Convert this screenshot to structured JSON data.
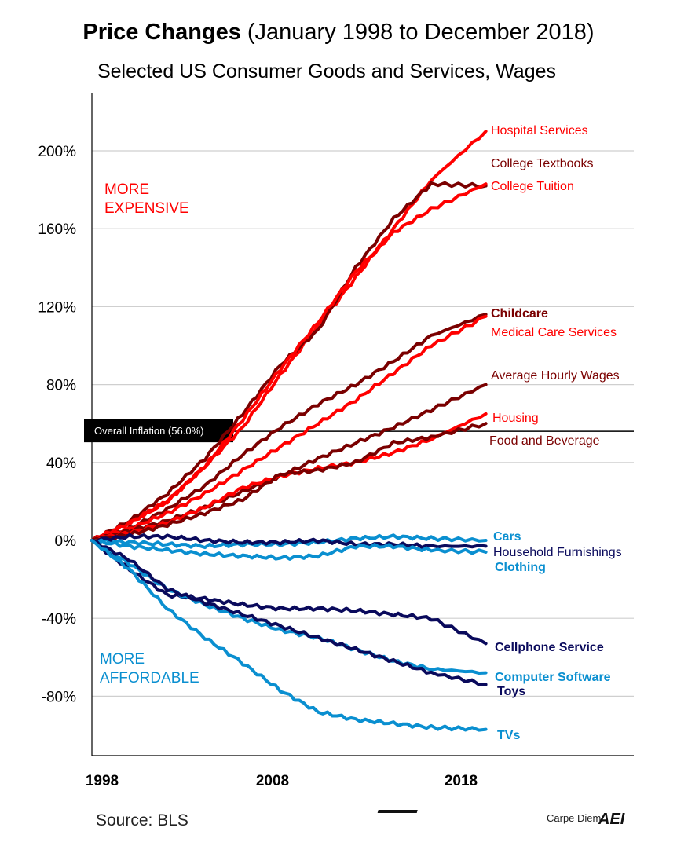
{
  "chart_data": {
    "type": "line",
    "title": "Price Changes",
    "title_suffix": "(January 1998 to December 2018)",
    "subtitle": "Selected US Consumer Goods and Services, Wages",
    "ylim": [
      -100,
      240
    ],
    "y_ticks": [
      {
        "value": 200,
        "label": "200%"
      },
      {
        "value": 160,
        "label": "160%"
      },
      {
        "value": 120,
        "label": "120%"
      },
      {
        "value": 80,
        "label": "80%"
      },
      {
        "value": 40,
        "label": "40%"
      },
      {
        "value": 0,
        "label": "0%"
      },
      {
        "value": -40,
        "label": "-40%"
      },
      {
        "value": -80,
        "label": "-80%"
      }
    ],
    "x_ticks": [
      {
        "value": 1998,
        "label": "1998"
      },
      {
        "value": 2008,
        "label": "2008"
      },
      {
        "value": 2018,
        "label": "2018"
      }
    ],
    "grid": "horizontal",
    "x": [
      1998,
      2000,
      2002,
      2004,
      2006,
      2008,
      2010,
      2012,
      2014,
      2016,
      2018.9
    ],
    "colors": {
      "red": "#ff0000",
      "dark_red": "#7a0000",
      "light_blue": "#0a8fd0",
      "navy": "#0a0a5c"
    },
    "series": [
      {
        "name": "Hospital Services",
        "color": "#ff0000",
        "bold": false,
        "values": [
          0,
          9,
          20,
          38,
          58,
          85,
          110,
          135,
          160,
          185,
          210
        ]
      },
      {
        "name": "College Textbooks",
        "color": "#7a0000",
        "bold": false,
        "values": [
          0,
          10,
          24,
          42,
          65,
          90,
          108,
          140,
          165,
          183,
          182
        ]
      },
      {
        "name": "College Tuition",
        "color": "#ff0000",
        "bold": false,
        "values": [
          0,
          9,
          20,
          38,
          62,
          88,
          112,
          138,
          158,
          170,
          183
        ]
      },
      {
        "name": "Childcare",
        "color": "#7a0000",
        "bold": true,
        "values": [
          0,
          6,
          16,
          28,
          44,
          58,
          70,
          80,
          92,
          105,
          116
        ]
      },
      {
        "name": "Medical Care Services",
        "color": "#ff0000",
        "bold": false,
        "values": [
          0,
          6,
          14,
          24,
          36,
          48,
          60,
          72,
          86,
          100,
          115
        ]
      },
      {
        "name": "Average Hourly Wages",
        "color": "#7a0000",
        "bold": false,
        "values": [
          0,
          5,
          10,
          17,
          25,
          33,
          42,
          50,
          58,
          67,
          80
        ]
      },
      {
        "name": "Housing",
        "color": "#ff0000",
        "bold": false,
        "values": [
          0,
          4,
          9,
          17,
          27,
          33,
          37,
          40,
          45,
          52,
          65
        ]
      },
      {
        "name": "Food and Beverage",
        "color": "#7a0000",
        "bold": false,
        "values": [
          0,
          3,
          8,
          14,
          21,
          34,
          36,
          40,
          50,
          53,
          60
        ]
      },
      {
        "name": "Cars",
        "color": "#0a8fd0",
        "bold": true,
        "values": [
          0,
          -1,
          -2,
          -3,
          -2,
          -2,
          -1,
          1,
          2,
          1,
          0
        ]
      },
      {
        "name": "Household Furnishings",
        "color": "#0a0a5c",
        "bold": false,
        "values": [
          0,
          2,
          2,
          0,
          -1,
          -1,
          0,
          -2,
          -2,
          -3,
          -3
        ]
      },
      {
        "name": "Clothing",
        "color": "#0a8fd0",
        "bold": true,
        "values": [
          0,
          -3,
          -5,
          -7,
          -8,
          -9,
          -8,
          -3,
          -3,
          -5,
          -6
        ]
      },
      {
        "name": "Cellphone Service",
        "color": "#0a0a5c",
        "bold": true,
        "values": [
          0,
          -15,
          -28,
          -30,
          -33,
          -35,
          -35,
          -36,
          -38,
          -40,
          -53
        ]
      },
      {
        "name": "Computer Software",
        "color": "#0a8fd0",
        "bold": true,
        "values": [
          0,
          -12,
          -25,
          -33,
          -40,
          -46,
          -50,
          -56,
          -62,
          -66,
          -68
        ]
      },
      {
        "name": "Toys",
        "color": "#0a0a5c",
        "bold": true,
        "values": [
          0,
          -10,
          -25,
          -32,
          -38,
          -44,
          -50,
          -56,
          -62,
          -68,
          -74
        ]
      },
      {
        "name": "TVs",
        "color": "#0a8fd0",
        "bold": true,
        "values": [
          0,
          -15,
          -35,
          -50,
          -63,
          -77,
          -88,
          -92,
          -94,
          -96,
          -97
        ]
      }
    ],
    "reference_line": {
      "label": "Overall Inflation (56.0%)",
      "value": 56.0
    },
    "annotations": {
      "more_expensive": [
        "MORE",
        "EXPENSIVE"
      ],
      "more_affordable": [
        "MORE",
        "AFFORDABLE"
      ]
    }
  },
  "footer": {
    "source": "Source: BLS",
    "brand": "Carpe Diem",
    "logo_text": "AEI"
  }
}
